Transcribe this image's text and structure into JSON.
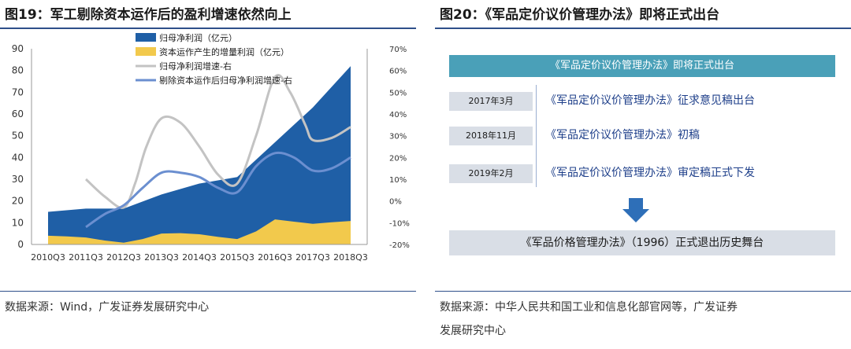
{
  "left_panel": {
    "title": "图19：军工剔除资本运作后的盈利增速依然向上",
    "source": "数据来源：Wind，广发证券发展研究中心"
  },
  "right_panel": {
    "title": "图20：《军品定价议价管理办法》即将正式出台",
    "banner": "《军品定价议价管理办法》即将正式出台",
    "timeline": [
      {
        "date": "2017年3月",
        "text": "《军品定价议价管理办法》征求意见稿出台"
      },
      {
        "date": "2018年11月",
        "text": "《军品定价议价管理办法》初稿"
      },
      {
        "date": "2019年2月",
        "text": "《军品定价议价管理办法》审定稿正式下发"
      }
    ],
    "footer": "《军品价格管理办法》（1996）正式退出历史舞台",
    "source_line1": "数据来源：中华人民共和国工业和信息化部官网等，广发证券",
    "source_line2": "发展研究中心",
    "colors": {
      "banner": "#4aa0b8",
      "box": "#d9dee6",
      "arrow": "#2e6fb8",
      "text": "#1e3f8a"
    }
  },
  "chart_data": {
    "type": "area",
    "categories": [
      "2010Q3",
      "2011Q3",
      "2012Q3",
      "2013Q3",
      "2014Q3",
      "2015Q3",
      "2016Q3",
      "2017Q3",
      "2018Q3"
    ],
    "ylim": [
      0,
      90
    ],
    "yticks": [
      0,
      10,
      20,
      30,
      40,
      50,
      60,
      70,
      80,
      90
    ],
    "y2lim": [
      -20,
      70
    ],
    "y2ticks": [
      "-20%",
      "-10%",
      "0%",
      "10%",
      "20%",
      "30%",
      "40%",
      "50%",
      "60%",
      "70%"
    ],
    "series": [
      {
        "name": "归母净利润（亿元）",
        "type": "area",
        "axis": "left",
        "color": "#1f5fa6",
        "x": [
          0,
          1,
          2,
          3,
          4,
          5,
          6,
          7,
          8
        ],
        "values": [
          15,
          16.5,
          16.5,
          23,
          28,
          31,
          47,
          63,
          82
        ]
      },
      {
        "name": "资本运作产生的增量利润（亿元）",
        "type": "area",
        "axis": "left",
        "color": "#f2c94c",
        "x": [
          0,
          0.5,
          1,
          1.5,
          2,
          2.5,
          3,
          3.5,
          4,
          4.5,
          5,
          5.5,
          6,
          6.5,
          7,
          7.5,
          8
        ],
        "values": [
          4,
          3.7,
          3.2,
          1.8,
          0.8,
          2.5,
          5,
          5.2,
          4.7,
          3.5,
          2.5,
          6,
          11.5,
          10.5,
          9.5,
          10.2,
          10.8
        ]
      },
      {
        "name": "归母净利润增速-右",
        "type": "line",
        "axis": "right",
        "color": "#c3c3c3",
        "x": [
          1,
          1.5,
          2,
          2.3,
          2.6,
          3,
          3.5,
          4,
          4.5,
          5,
          5.5,
          6,
          6.4,
          6.8,
          7,
          7.5,
          8
        ],
        "values": [
          10,
          2,
          -3,
          8,
          25,
          38,
          36,
          25,
          12,
          8,
          30,
          57,
          50,
          35,
          28,
          29,
          34
        ]
      },
      {
        "name": "剔除资本运作后归母净利润增速-右",
        "type": "line",
        "axis": "right",
        "color": "#6b8fd0",
        "x": [
          1,
          1.5,
          2,
          2.5,
          3,
          3.5,
          4,
          4.5,
          5,
          5.5,
          6,
          6.5,
          7,
          7.5,
          8
        ],
        "values": [
          -12,
          -6,
          -2,
          6,
          13,
          13,
          11,
          6,
          4,
          16,
          22,
          20,
          14,
          15,
          20
        ]
      }
    ]
  }
}
